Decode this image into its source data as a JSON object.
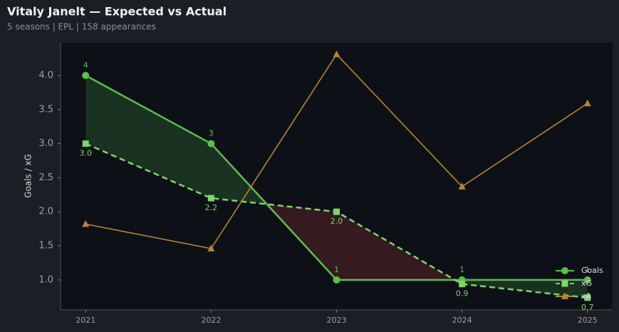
{
  "chart_data": {
    "type": "line",
    "title": "Vitaly Janelt — Expected vs Actual",
    "subtitle": "5 seasons | EPL | 158 appearances",
    "y_label": "Goals / xG",
    "x": [
      2021,
      2022,
      2023,
      2024,
      2025
    ],
    "xlim": [
      2020.8,
      2025.2
    ],
    "xticks": [
      2021,
      2022,
      2023,
      2024,
      2025
    ],
    "ylim": [
      0.56,
      4.48
    ],
    "yticks": [
      {
        "value": 1,
        "label": "1.0"
      },
      1.5,
      {
        "value": 2,
        "label": "2.0"
      },
      2.5,
      {
        "value": 3,
        "label": "3.0"
      },
      3.5,
      {
        "value": 4,
        "label": "4.0"
      }
    ],
    "legend": "lower right",
    "fill_between": [
      "Goals",
      "xG"
    ],
    "series": [
      {
        "name": "Goals",
        "color": "#5cbf4a",
        "marker": "circle",
        "linestyle": "solid",
        "values": [
          4,
          3,
          1,
          1,
          1
        ],
        "show_labels": true
      },
      {
        "name": "xG",
        "color": "#7ed56a",
        "marker": "square",
        "linestyle": "dashed",
        "values": [
          3.0,
          2.2,
          2.0,
          0.94,
          0.74
        ],
        "value_labels": [
          "3.0",
          "2.2",
          "2.0",
          "0.9",
          "0.7"
        ],
        "show_labels": true
      },
      {
        "name": "xA",
        "color": "#b8862a",
        "marker": "triangle",
        "linestyle": "solid",
        "values": [
          1.82,
          1.46,
          4.31,
          2.37,
          3.59
        ],
        "show_labels": false
      }
    ]
  }
}
